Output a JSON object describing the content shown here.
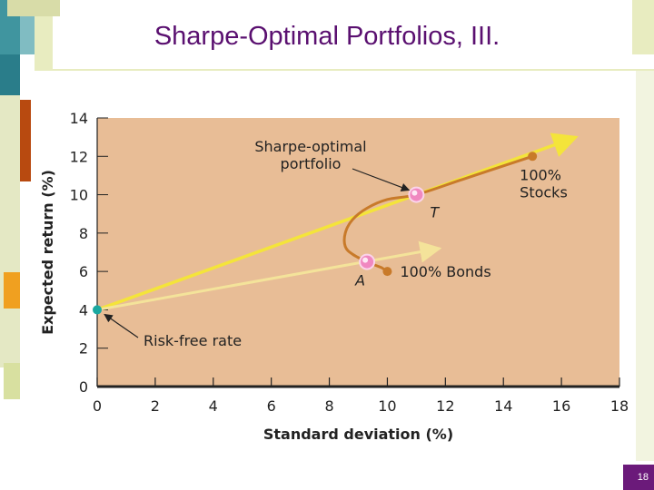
{
  "slide": {
    "title": "Sharpe-Optimal Portfolios, III.",
    "number": "18"
  },
  "colors": {
    "plot_background": "#e8bd96",
    "frontier": "#c87a2a",
    "tangent_line": "#f4e43a",
    "bond_line": "#f4e39a",
    "portfolio_marker": "#f088c0",
    "riskfree_marker": "#1aa8a0",
    "title": "#5a1070"
  },
  "chart_data": {
    "type": "line",
    "xlabel": "Standard deviation (%)",
    "ylabel": "Expected return (%)",
    "xlim": [
      0,
      18
    ],
    "ylim": [
      0,
      14
    ],
    "xticks": [
      0,
      2,
      4,
      6,
      8,
      10,
      12,
      14,
      16,
      18
    ],
    "yticks": [
      0,
      2,
      4,
      6,
      8,
      10,
      12,
      14
    ],
    "grid": false,
    "frontier": {
      "x": [
        9.8,
        9.3,
        8.8,
        8.55,
        8.55,
        8.8,
        9.3,
        10.0,
        11.0,
        12.5,
        14.0,
        15.0
      ],
      "y": [
        6.2,
        6.5,
        6.9,
        7.3,
        8.0,
        8.7,
        9.3,
        9.75,
        10.0,
        10.75,
        11.5,
        12.0
      ]
    },
    "points": [
      {
        "label": "100% Bonds",
        "x": 10.0,
        "y": 6.0,
        "kind": "endpoint"
      },
      {
        "label": "100%\nStocks",
        "x": 15.0,
        "y": 12.0,
        "kind": "endpoint"
      },
      {
        "label": "A",
        "x": 9.3,
        "y": 6.5,
        "kind": "portfolio"
      },
      {
        "label": "T",
        "x": 11.0,
        "y": 10.0,
        "kind": "portfolio"
      },
      {
        "label": "Risk-free rate",
        "x": 0.0,
        "y": 4.0,
        "kind": "riskfree"
      }
    ],
    "lines": [
      {
        "from": [
          0,
          4
        ],
        "to": [
          16.5,
          13.0
        ],
        "kind": "tangent"
      },
      {
        "from": [
          0,
          4
        ],
        "to": [
          11.8,
          7.2
        ],
        "kind": "bond"
      }
    ],
    "annotations": [
      {
        "text": "Sharpe-optimal\nportfolio",
        "points_to": "T"
      },
      {
        "text": "Risk-free rate",
        "points_to": "Risk-free rate"
      }
    ]
  }
}
